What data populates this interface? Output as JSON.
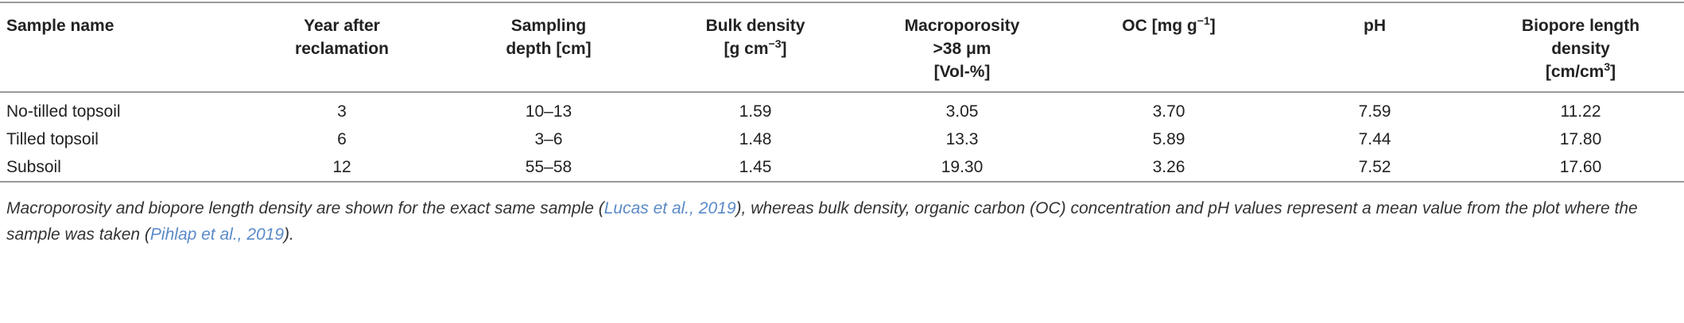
{
  "table": {
    "headers": [
      [
        [
          {
            "text": "Sample name"
          }
        ]
      ],
      [
        [
          {
            "text": "Year after"
          }
        ],
        [
          {
            "text": "reclamation"
          }
        ]
      ],
      [
        [
          {
            "text": "Sampling"
          }
        ],
        [
          {
            "text": "depth [cm]"
          }
        ]
      ],
      [
        [
          {
            "text": "Bulk density"
          }
        ],
        [
          {
            "text": "[g cm"
          },
          {
            "sup": "−3"
          },
          {
            "text": "]"
          }
        ]
      ],
      [
        [
          {
            "text": "Macroporosity"
          }
        ],
        [
          {
            "text": ">38 μm"
          }
        ],
        [
          {
            "text": "[Vol-%]"
          }
        ]
      ],
      [
        [
          {
            "text": "OC [mg g"
          },
          {
            "sup": "−1"
          },
          {
            "text": "]"
          }
        ]
      ],
      [
        [
          {
            "text": "pH"
          }
        ]
      ],
      [
        [
          {
            "text": "Biopore length"
          }
        ],
        [
          {
            "text": "density"
          }
        ],
        [
          {
            "text": "[cm/cm"
          },
          {
            "sup": "3"
          },
          {
            "text": "]"
          }
        ]
      ]
    ],
    "rows": [
      [
        "No-tilled topsoil",
        "3",
        "10–13",
        "1.59",
        "3.05",
        "3.70",
        "7.59",
        "11.22"
      ],
      [
        "Tilled topsoil",
        "6",
        "3–6",
        "1.48",
        "13.3",
        "5.89",
        "7.44",
        "17.80"
      ],
      [
        "Subsoil",
        "12",
        "55–58",
        "1.45",
        "19.30",
        "3.26",
        "7.52",
        "17.60"
      ]
    ],
    "footnote": [
      {
        "text": "Macroporosity and biopore length density are shown for the exact same sample ("
      },
      {
        "link": "Lucas et al., 2019"
      },
      {
        "text": "), whereas bulk density, organic carbon (OC) concentration and pH values represent a mean value from the plot where the sample was taken ("
      },
      {
        "link": "Pihlap et al., 2019"
      },
      {
        "text": ")."
      }
    ]
  }
}
